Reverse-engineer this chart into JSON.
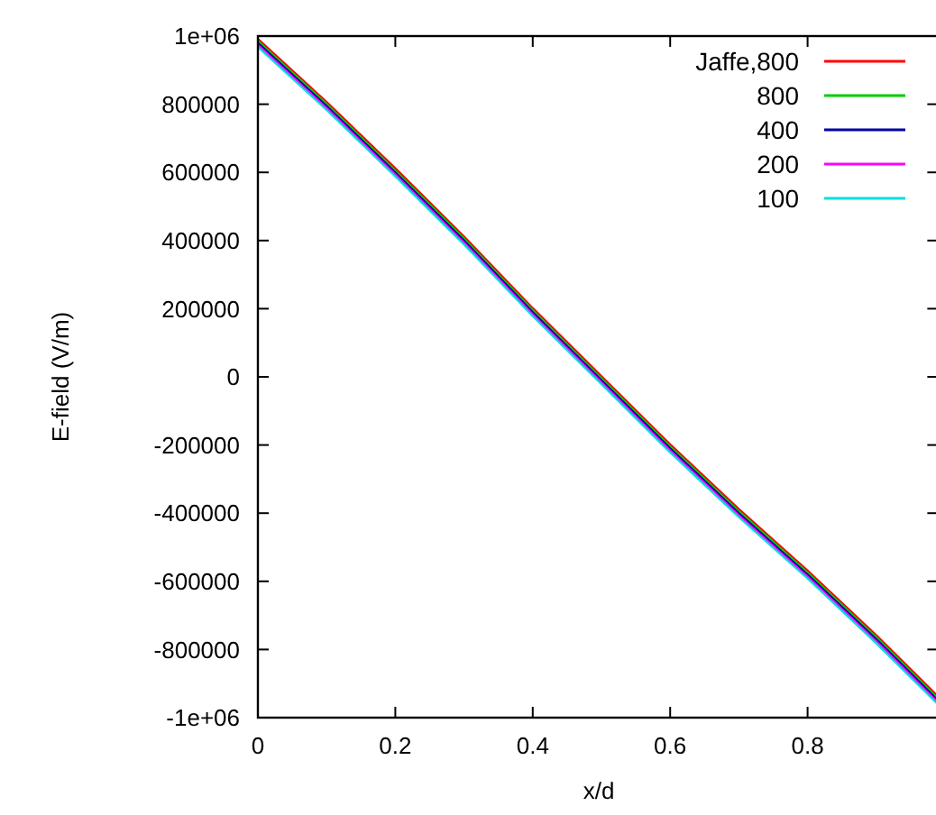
{
  "chart_data": {
    "type": "line",
    "xlabel": "x/d",
    "ylabel": "E-field (V/m)",
    "xlim": [
      0,
      0.99
    ],
    "ylim": [
      -1000000,
      1000000
    ],
    "xticks": [
      0,
      0.2,
      0.4,
      0.6,
      0.8
    ],
    "yticks": [
      {
        "value": 1000000,
        "label": "1e+06"
      },
      800000,
      600000,
      400000,
      200000,
      0,
      -200000,
      -400000,
      -600000,
      -800000,
      {
        "value": -1000000,
        "label": "-1e+06"
      }
    ],
    "x": [
      0,
      0.1,
      0.2,
      0.3,
      0.4,
      0.5,
      0.6,
      0.7,
      0.8,
      0.9,
      0.99
    ],
    "series": [
      {
        "name": "Jaffe,800",
        "color": "#ff0000",
        "values": [
          992000,
          807000,
          612000,
          412000,
          202000,
          2000,
          -198000,
          -388000,
          -568000,
          -758000,
          -938000
        ]
      },
      {
        "name": "800",
        "color": "#00cc00",
        "values": [
          986000,
          801000,
          606000,
          406000,
          196000,
          -4000,
          -204000,
          -394000,
          -574000,
          -764000,
          -944000
        ]
      },
      {
        "name": "400",
        "color": "#0000a0",
        "values": [
          980000,
          795000,
          600000,
          400000,
          190000,
          -10000,
          -210000,
          -400000,
          -580000,
          -770000,
          -950000
        ]
      },
      {
        "name": "200",
        "color": "#ff00ff",
        "values": [
          974000,
          789000,
          594000,
          394000,
          184000,
          -16000,
          -216000,
          -406000,
          -586000,
          -776000,
          -956000
        ]
      },
      {
        "name": "100",
        "color": "#00e0e0",
        "values": [
          968000,
          783000,
          588000,
          388000,
          178000,
          -22000,
          -222000,
          -412000,
          -592000,
          -782000,
          -962000
        ]
      }
    ],
    "legend": "top right",
    "grid": false,
    "line_style": "solid"
  }
}
